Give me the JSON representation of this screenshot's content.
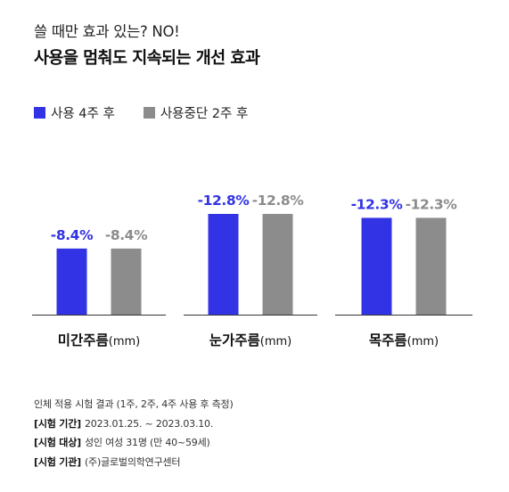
{
  "header": {
    "subtitle": "쓸 때만 효과 있는? NO!",
    "title": "사용을 멈춰도 지속되는 개선 효과"
  },
  "colors": {
    "series1": "#3333e6",
    "series2": "#8c8c8c",
    "axis": "#333333"
  },
  "chart_data": {
    "type": "bar",
    "categories": [
      "미간주름",
      "눈가주름",
      "목주름"
    ],
    "category_units": [
      "(mm)",
      "(mm)",
      "(mm)"
    ],
    "series": [
      {
        "name": "사용 4주 후",
        "values": [
          -8.4,
          -12.8,
          -12.3
        ],
        "labels": [
          "-8.4%",
          "-12.8%",
          "-12.3%"
        ]
      },
      {
        "name": "사용중단 2주 후",
        "values": [
          -8.4,
          -12.8,
          -12.3
        ],
        "labels": [
          "-8.4%",
          "-12.8%",
          "-12.3%"
        ]
      }
    ],
    "ylim": [
      0,
      -14
    ],
    "grid": false,
    "legend": "top-left"
  },
  "footer": {
    "note": "인체 적용 시험 결과 (1주, 2주, 4주 사용 후 측정)",
    "period_key": "[시험 기간]",
    "period_value": "2023.01.25. ~ 2023.03.10.",
    "subject_key": "[시험 대상]",
    "subject_value": "성인 여성 31명 (만 40~59세)",
    "org_key": "[시험 기관]",
    "org_value": "(주)글로벌의학연구센터"
  }
}
